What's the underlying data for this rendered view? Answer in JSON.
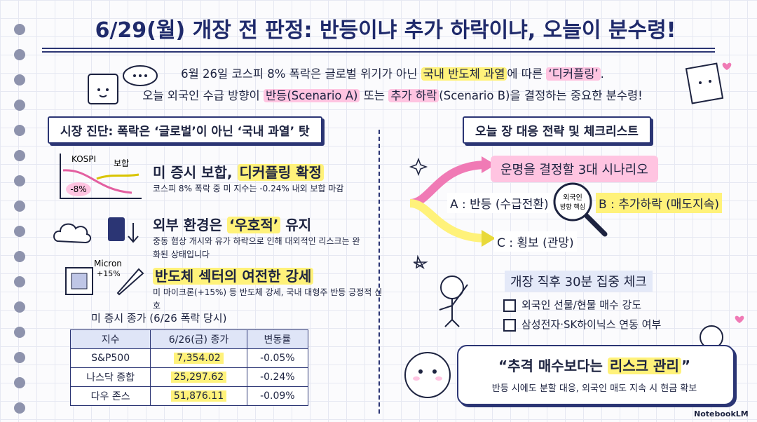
{
  "title": "6/29(월) 개장 전 판정: 반등이냐 추가 하락이냐, 오늘이 분수령!",
  "intro": [
    [
      {
        "text": "6월 26일 코스피 8% 폭락은 글로벌 위기가 아닌 "
      },
      {
        "text": "국내 반도체 과열",
        "highlight": "#fff27a"
      },
      {
        "text": "에 따른 "
      },
      {
        "text": "‘디커플링’",
        "highlight": "#ffc4e1"
      },
      {
        "text": "."
      }
    ],
    [
      {
        "text": "오늘 외국인 수급 방향이 "
      },
      {
        "text": "반등(Scenario A)",
        "highlight": "#ffc4e1"
      },
      {
        "text": " 또는 "
      },
      {
        "text": "추가 하락",
        "highlight": "#ffc4e1"
      },
      {
        "text": "(Scenario B)을 결정하는 중요한 분수령!"
      }
    ]
  ],
  "left": {
    "heading": "시장 진단: 폭락은 ‘글로벌’이 아닌 ‘국내 과열’ 탓",
    "icon_labels": {
      "kospi": "KOSPI",
      "flat": "보합",
      "drop": "-8%",
      "micron": "Micron",
      "micron_change": "+15%"
    },
    "items": [
      {
        "title": [
          {
            "text": "미 증시 보합, "
          },
          {
            "text": "디커플링 확정",
            "highlight": "#fff27a"
          }
        ],
        "desc": "코스피 8% 폭락 중 미 지수는 -0.24% 내외 보합 마감"
      },
      {
        "title": [
          {
            "text": "외부 환경은 "
          },
          {
            "text": "‘우호적’",
            "highlight": "#fff27a"
          },
          {
            "text": " 유지"
          }
        ],
        "desc": "중동 협상 개시와 유가 하락으로 인해 대외적인 리스크는 완화된 상태입니다"
      },
      {
        "title": [
          {
            "text": "반도체 섹터의 여전한 강세",
            "highlight": "#fff27a"
          }
        ],
        "desc": "미 마이크론(+15%) 등 반도체 강세, 국내 대형주 반등 긍정적 신호"
      }
    ],
    "table": {
      "title": "미 증시 종가 (6/26 폭락 당시)",
      "headers": [
        "지수",
        "6/26(금) 종가",
        "변동률"
      ],
      "rows": [
        [
          "S&P500",
          "7,354.02",
          "-0.05%"
        ],
        [
          "나스닥 종합",
          "25,297.62",
          "-0.24%"
        ],
        [
          "다우 존스",
          "51,876.11",
          "-0.09%"
        ]
      ]
    }
  },
  "right": {
    "heading": "오늘 장 대응 전략 및 체크리스트",
    "scenario_title": "운명을 결정할 3대 시나리오",
    "scenario_a": "A : 반등 (수급전환)",
    "scenario_b": "B : 추가하락 (매도지속)",
    "scenario_c": "C : 횡보 (관망)",
    "lens": [
      "외국인",
      "방향 핵심"
    ],
    "check_title": "개장 직후 30분 집중 체크",
    "checks": [
      "외국인 선물/현물 매수 강도",
      "삼성전자·SK하이닉스 연동 여부"
    ],
    "quote": [
      {
        "text": "“추격 매수보다는 "
      },
      {
        "text": "리스크 관리",
        "highlight": "#fff27a"
      },
      {
        "text": "”"
      }
    ],
    "quote_sub": "반등 시에도 분할 대응, 외국인 매도 지속 시 현금 확보"
  },
  "footer": "NotebookLM"
}
